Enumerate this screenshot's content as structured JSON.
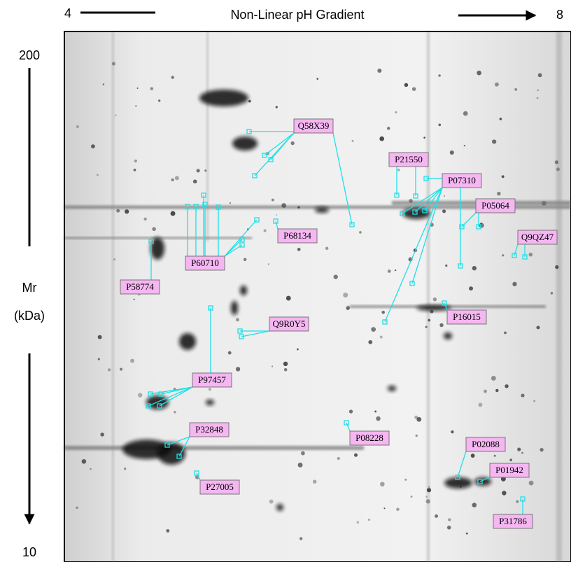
{
  "axis": {
    "ph_start": "4",
    "ph_title": "Non-Linear pH Gradient",
    "ph_end": "8",
    "mr_top": "200",
    "mr_label": "Mr",
    "mr_unit": "(kDa)",
    "mr_bottom": "10"
  },
  "labels": [
    {
      "text": "Q58X39"
    },
    {
      "text": "P21550"
    },
    {
      "text": "P07310"
    },
    {
      "text": "P05064"
    },
    {
      "text": "Q9QZ47"
    },
    {
      "text": "P68134"
    },
    {
      "text": "P60710"
    },
    {
      "text": "P58774"
    },
    {
      "text": "P16015"
    },
    {
      "text": "Q9R0Y5"
    },
    {
      "text": "P97457"
    },
    {
      "text": "P32848"
    },
    {
      "text": "P08228"
    },
    {
      "text": "P02088"
    },
    {
      "text": "P27005"
    },
    {
      "text": "P01942"
    },
    {
      "text": "P31786"
    }
  ]
}
